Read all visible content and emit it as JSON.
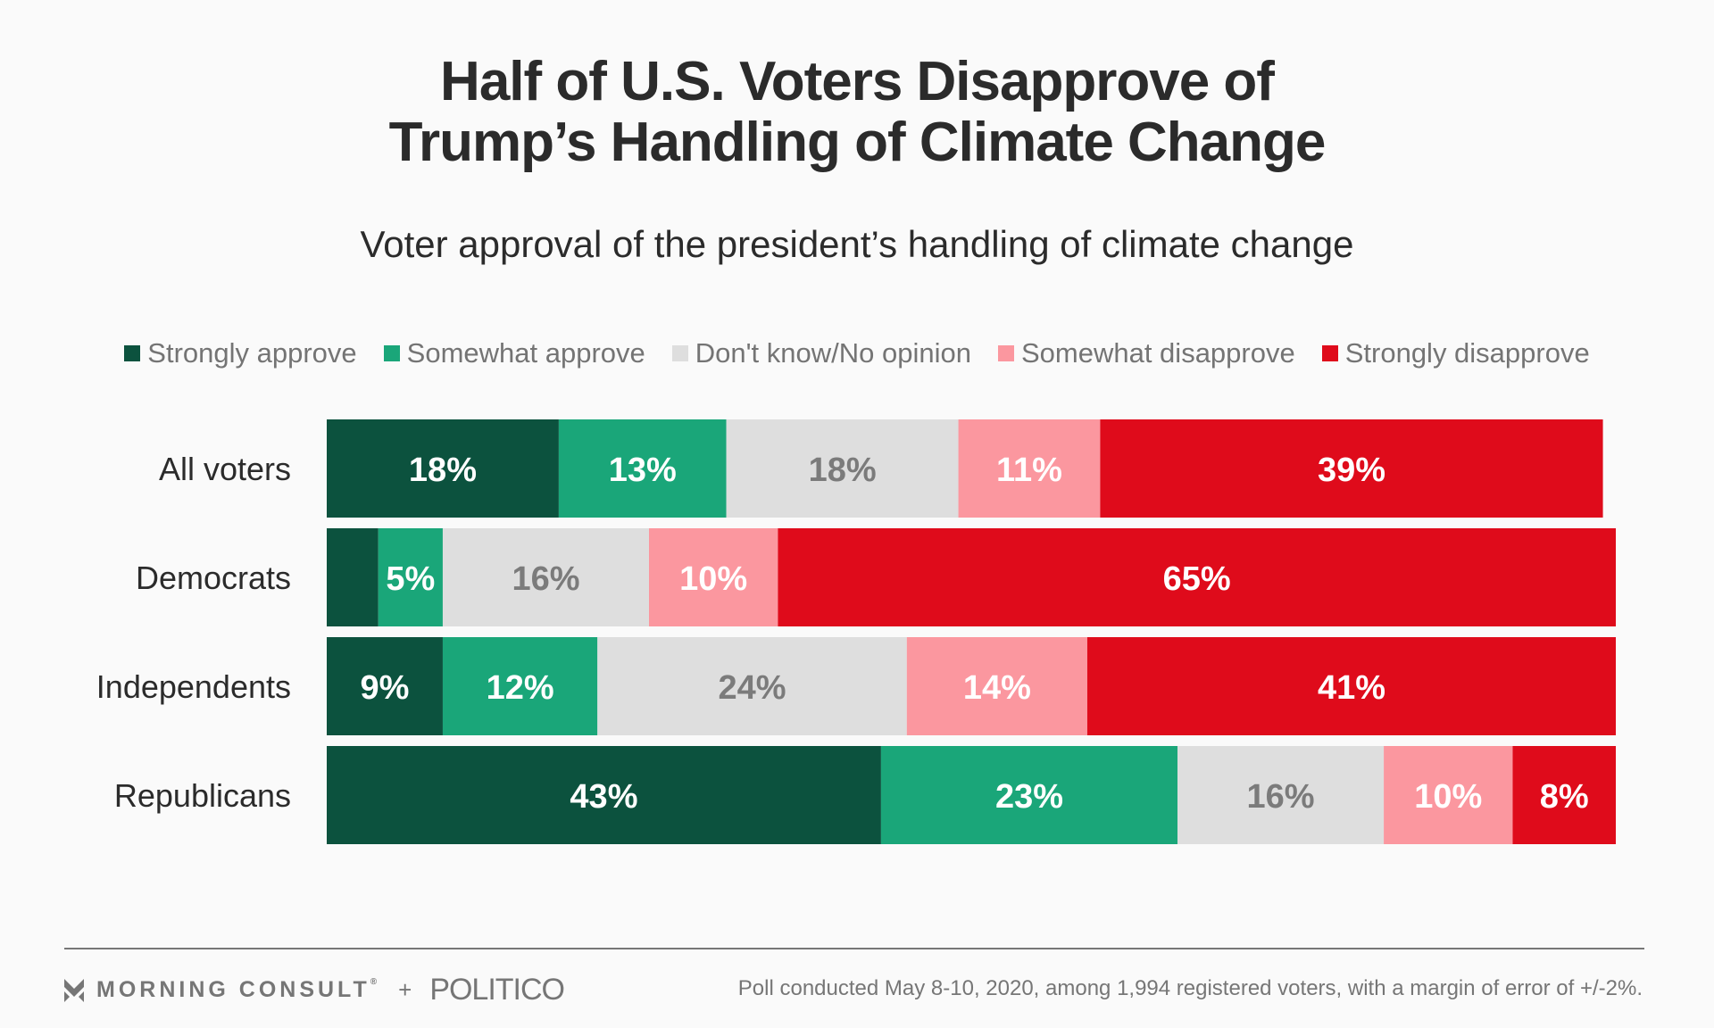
{
  "header": {
    "title_line1": "Half of U.S. Voters Disapprove of",
    "title_line2": "Trump’s Handling of Climate Change",
    "subtitle": "Voter approval of the president’s handling of climate change"
  },
  "legend": [
    {
      "label": "Strongly approve",
      "color": "#0c523e"
    },
    {
      "label": "Somewhat approve",
      "color": "#1aa679"
    },
    {
      "label": "Don't know/No opinion",
      "color": "#dedede"
    },
    {
      "label": "Somewhat disapprove",
      "color": "#fb979f"
    },
    {
      "label": "Strongly disapprove",
      "color": "#df0b1b"
    }
  ],
  "chart_data": {
    "type": "bar",
    "orientation": "horizontal",
    "stacked": true,
    "title": "Half of U.S. Voters Disapprove of Trump’s Handling of Climate Change",
    "subtitle": "Voter approval of the president’s handling of climate change",
    "xlabel": "",
    "ylabel": "",
    "xlim": [
      0,
      100
    ],
    "grid": false,
    "legend_position": "top",
    "categories": [
      "All voters",
      "Democrats",
      "Independents",
      "Republicans"
    ],
    "series": [
      {
        "name": "Strongly approve",
        "color": "#0c523e",
        "label_color": "#ffffff",
        "values": [
          18,
          4,
          9,
          43
        ],
        "labels": [
          "18%",
          "",
          "9%",
          "43%"
        ]
      },
      {
        "name": "Somewhat approve",
        "color": "#1aa679",
        "label_color": "#ffffff",
        "values": [
          13,
          5,
          12,
          23
        ],
        "labels": [
          "13%",
          "5%",
          "12%",
          "23%"
        ]
      },
      {
        "name": "Don't know/No opinion",
        "color": "#dedede",
        "label_color": "#7b7b7b",
        "values": [
          18,
          16,
          24,
          16
        ],
        "labels": [
          "18%",
          "16%",
          "24%",
          "16%"
        ]
      },
      {
        "name": "Somewhat disapprove",
        "color": "#fb979f",
        "label_color": "#ffffff",
        "values": [
          11,
          10,
          14,
          10
        ],
        "labels": [
          "11%",
          "10%",
          "14%",
          "10%"
        ]
      },
      {
        "name": "Strongly disapprove",
        "color": "#df0b1b",
        "label_color": "#ffffff",
        "values": [
          39,
          65,
          41,
          8
        ],
        "labels": [
          "39%",
          "65%",
          "41%",
          "8%"
        ]
      }
    ]
  },
  "footer": {
    "brand_morning_consult": "MORNING CONSULT",
    "brand_registered": "®",
    "brand_plus": "+",
    "brand_politico": "POLITICO",
    "note": "Poll conducted May 8-10, 2020, among 1,994 registered voters, with a margin of error of +/-2%."
  }
}
